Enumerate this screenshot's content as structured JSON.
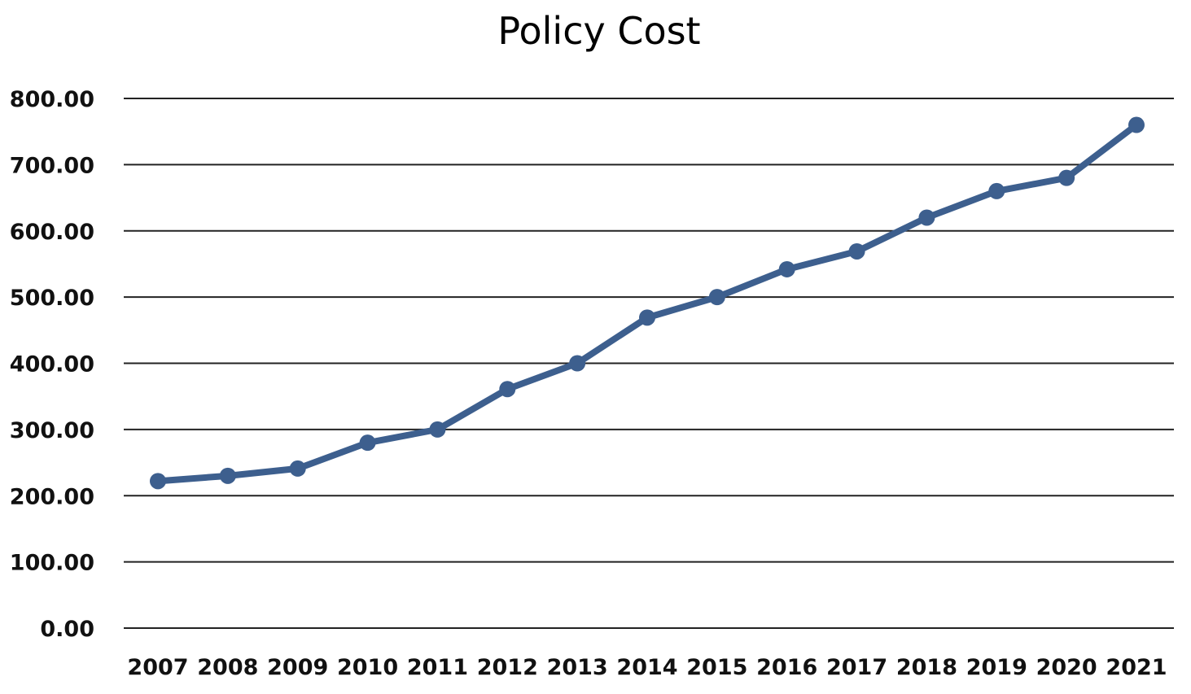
{
  "chart_data": {
    "type": "line",
    "title": "Policy Cost",
    "xlabel": "",
    "ylabel": "",
    "categories": [
      "2007",
      "2008",
      "2009",
      "2010",
      "2011",
      "2012",
      "2013",
      "2014",
      "2015",
      "2016",
      "2017",
      "2018",
      "2019",
      "2020",
      "2021"
    ],
    "series": [
      {
        "values": [
          222,
          230,
          241,
          280,
          300,
          361,
          400,
          469,
          500,
          542,
          569,
          620,
          660,
          680,
          760
        ]
      }
    ],
    "ylim": [
      0,
      800
    ],
    "yticks": [
      "0.00",
      "100.00",
      "200.00",
      "300.00",
      "400.00",
      "500.00",
      "600.00",
      "700.00",
      "800.00"
    ],
    "grid": true,
    "legend": "none",
    "colors": {
      "series": "#3D5F8E",
      "grid": "#222222",
      "background": "#FFFFFF"
    }
  }
}
